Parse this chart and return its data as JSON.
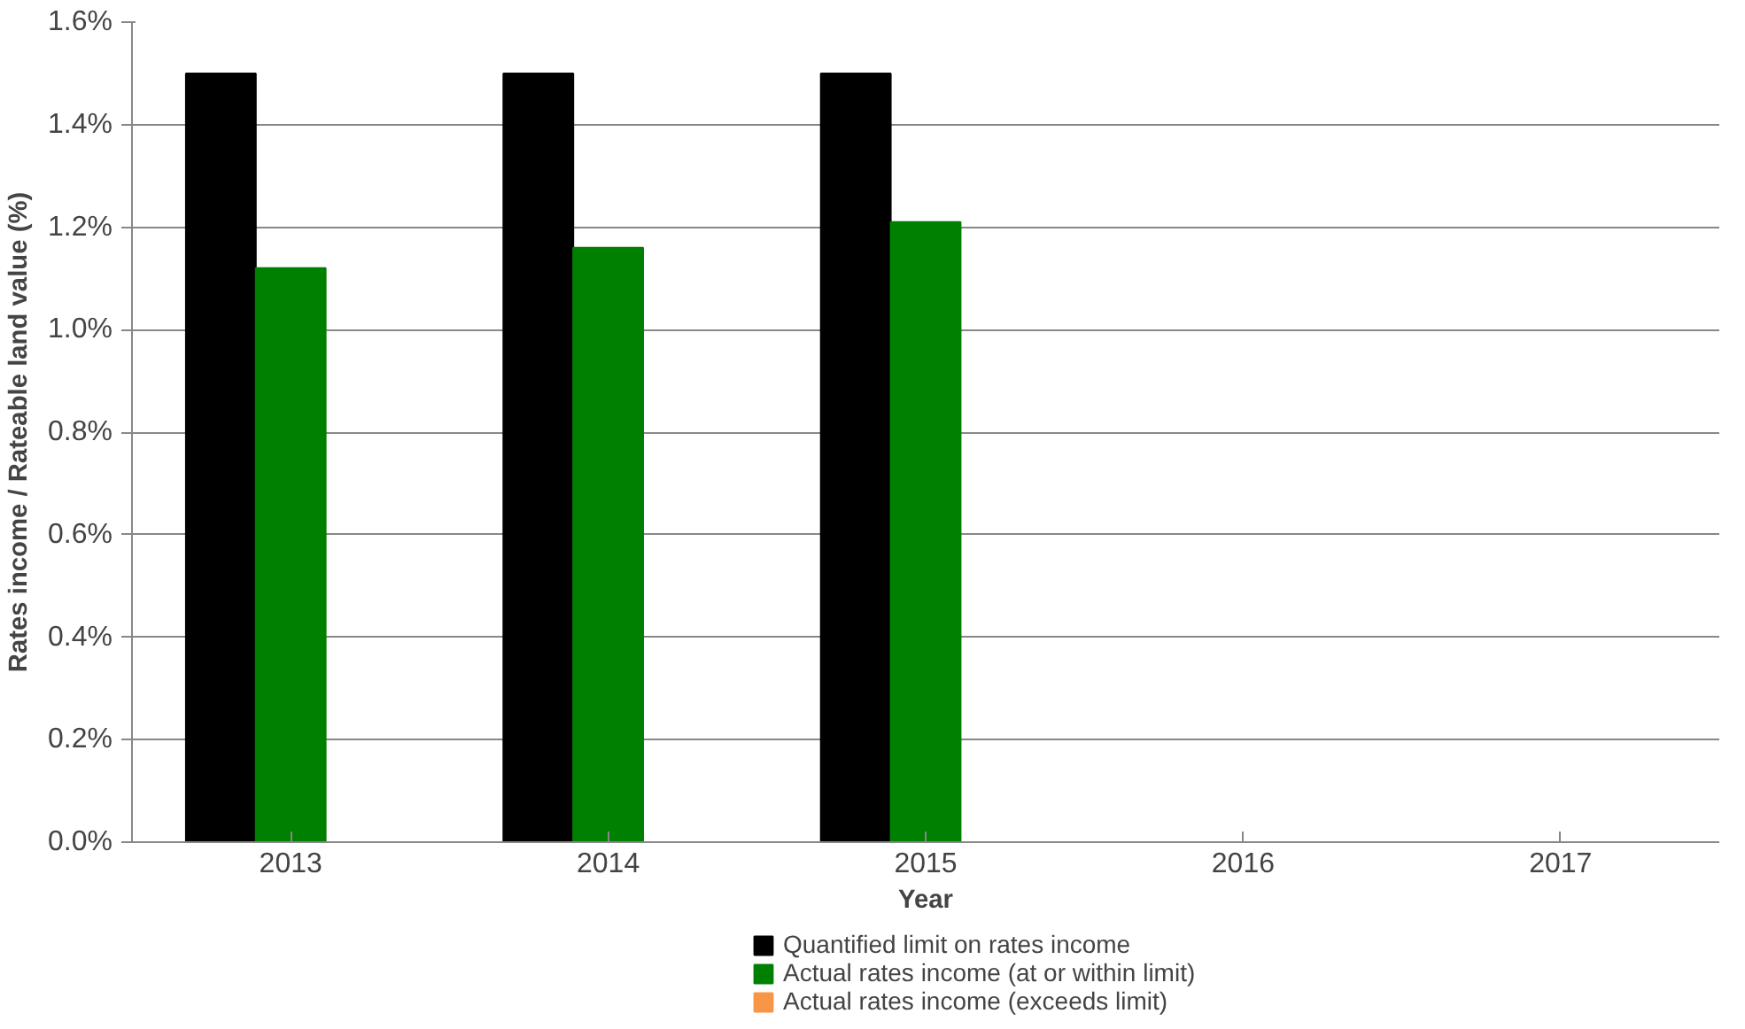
{
  "chart_data": {
    "type": "bar",
    "xlabel": "Year",
    "ylabel": "Rates income / Rateable land value (%)",
    "categories": [
      "2013",
      "2014",
      "2015",
      "2016",
      "2017"
    ],
    "series": [
      {
        "name": "Quantified limit on rates income",
        "color": "#000000",
        "values": [
          1.5,
          1.5,
          1.5,
          null,
          null
        ]
      },
      {
        "name": "Actual rates income (at or within limit)",
        "color": "#008000",
        "values": [
          1.12,
          1.16,
          1.21,
          null,
          null
        ]
      },
      {
        "name": "Actual rates income (exceeds limit)",
        "color": "#f79646",
        "values": [
          null,
          null,
          null,
          null,
          null
        ]
      }
    ],
    "ylim": [
      0,
      1.6
    ],
    "yticks": [
      {
        "value": 0,
        "label": "0.0%"
      },
      {
        "value": 0.2,
        "label": "0.2%"
      },
      {
        "value": 0.4,
        "label": "0.4%"
      },
      {
        "value": 0.6,
        "label": "0.6%"
      },
      {
        "value": 0.8,
        "label": "0.8%"
      },
      {
        "value": 1.0,
        "label": "1.0%"
      },
      {
        "value": 1.2,
        "label": "1.2%"
      },
      {
        "value": 1.4,
        "label": "1.4%"
      },
      {
        "value": 1.6,
        "label": "1.6%"
      }
    ],
    "grid": "y",
    "legend": "bottom"
  }
}
